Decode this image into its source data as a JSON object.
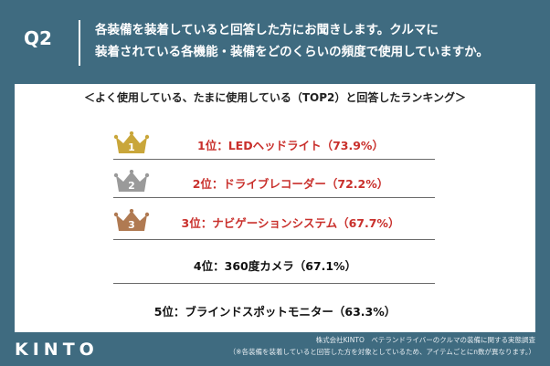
{
  "header": {
    "q_label": "Q2",
    "question_line1": "各装備を装着していると回答した方にお聞きします。クルマに",
    "question_line2": "装着されている各機能・装備をどのくらいの頻度で使用していますか。"
  },
  "panel": {
    "subtitle": "＜よく使用している、たまに使用している（TOP2）と回答したランキング＞",
    "ranking": [
      {
        "rank": "1",
        "text": "1位：LEDヘッドライト（73.9%）",
        "value_percent": 73.9,
        "crown_color": "#c9a63a"
      },
      {
        "rank": "2",
        "text": "2位：ドライブレコーダー（72.2%）",
        "value_percent": 72.2,
        "crown_color": "#9a9a9a"
      },
      {
        "rank": "3",
        "text": "3位：ナビゲーションシステム（67.7%）",
        "value_percent": 67.7,
        "crown_color": "#b07a52"
      },
      {
        "rank": "4",
        "text": "4位：360度カメラ（67.1%）",
        "value_percent": 67.1
      },
      {
        "rank": "5",
        "text": "5位：ブラインドスポットモニター（63.3%）",
        "value_percent": 63.3
      }
    ]
  },
  "footer": {
    "logo": "KINTO",
    "source": "株式会社KINTO　ベテランドライバーのクルマの装備に関する実態調査",
    "note": "（※各装備を装着していると回答した方を対象としているため、アイテムごとにn数が異なります。）"
  },
  "colors": {
    "background": "#3f6b80",
    "highlight_text": "#c9302c"
  }
}
